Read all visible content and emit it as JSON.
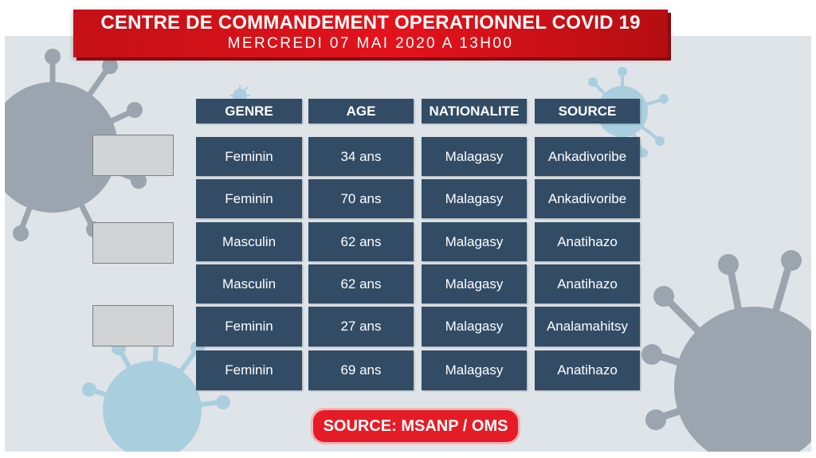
{
  "header": {
    "title": "CENTRE DE COMMANDEMENT OPERATIONNEL COVID 19",
    "subtitle": "MERCREDI 07 MAI 2020 A 13H00"
  },
  "table": {
    "columns": [
      "GENRE",
      "AGE",
      "NATIONALITE",
      "SOURCE"
    ],
    "rows": [
      [
        "Feminin",
        "34 ans",
        "Malagasy",
        "Ankadivoribe"
      ],
      [
        "Feminin",
        "70 ans",
        "Malagasy",
        "Ankadivoribe"
      ],
      [
        "Masculin",
        "62 ans",
        "Malagasy",
        "Anatihazo"
      ],
      [
        "Masculin",
        "62 ans",
        "Malagasy",
        "Anatihazo"
      ],
      [
        "Feminin",
        "27 ans",
        "Malagasy",
        "Analamahitsy"
      ],
      [
        "Feminin",
        "69 ans",
        "Malagasy",
        "Anatihazo"
      ]
    ]
  },
  "footer": {
    "source_label": "SOURCE: MSANP / OMS"
  },
  "colors": {
    "header_red": "#e3131b",
    "cell_navy": "#324c66",
    "background": "#dfe4e8",
    "virus_gray": "#9aa5af",
    "virus_blue": "#a9cfdf"
  },
  "icons": [
    "virus-icon"
  ]
}
